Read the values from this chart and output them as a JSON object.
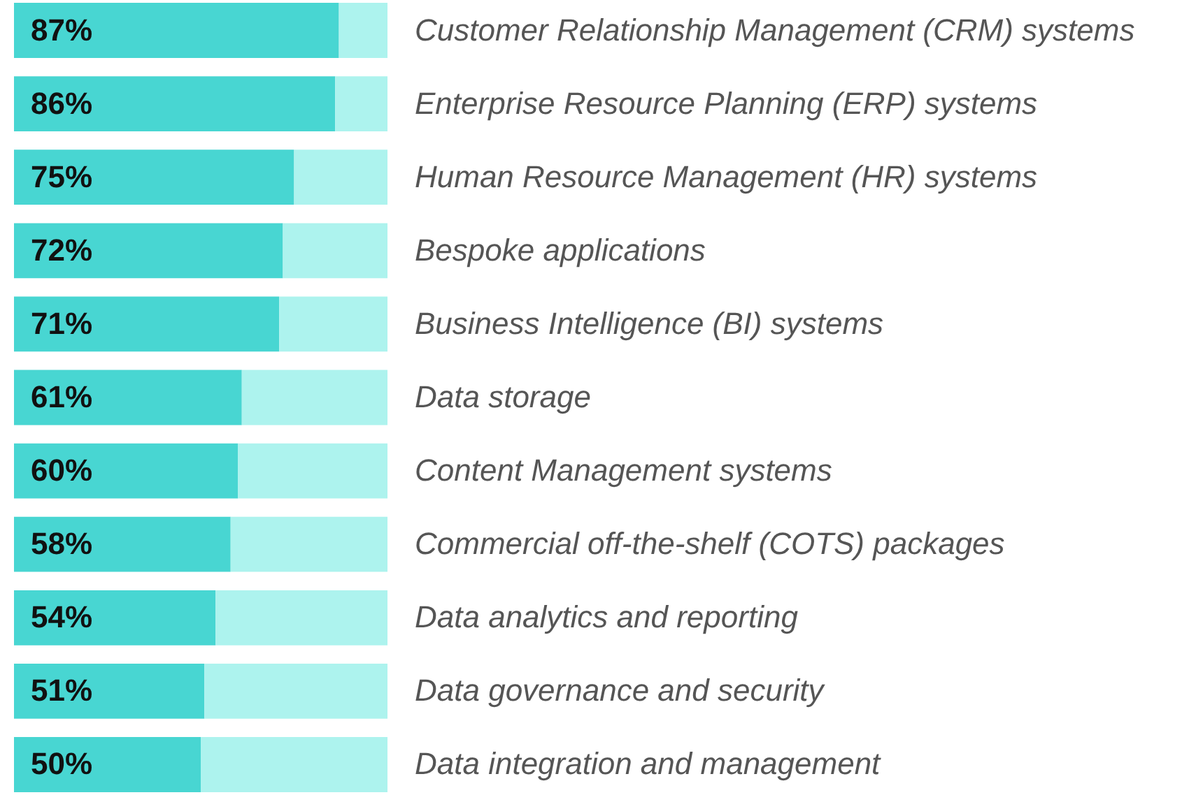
{
  "chart_data": {
    "type": "bar",
    "orientation": "horizontal",
    "stacked": true,
    "tick_labels": "y",
    "xlim": [
      0,
      100
    ],
    "categories": [
      "Customer Relationship Management (CRM) systems",
      "Enterprise Resource Planning (ERP) systems",
      "Human Resource Management (HR) systems",
      "Bespoke applications",
      "Business Intelligence (BI) systems",
      "Data storage",
      "Content Management systems",
      "Commercial off-the-shelf (COTS) packages",
      "Data analytics and reporting",
      "Data governance and security",
      "Data integration and management"
    ],
    "series": [
      {
        "color": "#48d6d2",
        "values": [
          87,
          86,
          75,
          72,
          71,
          61,
          60,
          58,
          54,
          51,
          50
        ],
        "value_labels": [
          "87%",
          "86%",
          "75%",
          "72%",
          "71%",
          "61%",
          "60%",
          "58%",
          "54%",
          "51%",
          "50%"
        ]
      },
      {
        "color": "#adf3ee",
        "values": [
          13,
          14,
          25,
          28,
          29,
          39,
          40,
          42,
          46,
          49,
          50
        ]
      }
    ]
  }
}
